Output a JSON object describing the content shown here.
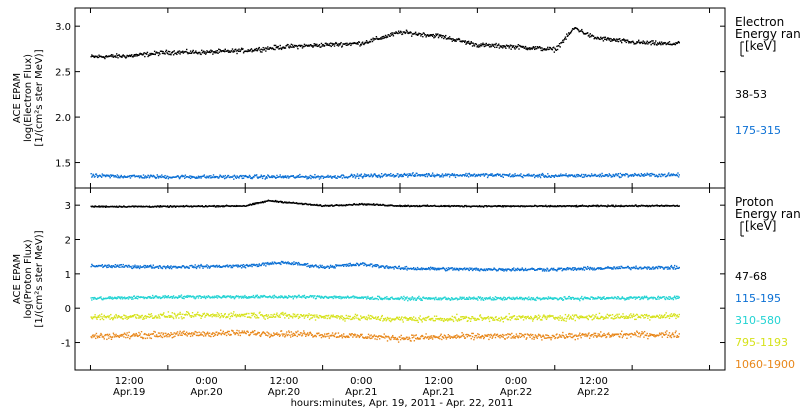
{
  "chart_data": [
    {
      "type": "scatter",
      "panel": "electron",
      "ylabel_lines": [
        "ACE EPAM",
        "log(Electron Flux)",
        "[1/(cm²s ster MeV)]"
      ],
      "ylim": [
        1.22,
        3.2
      ],
      "yticks": [
        1.5,
        2.0,
        2.5,
        3.0
      ],
      "ytick_labels": [
        "1.5",
        "2.0",
        "2.5",
        "3.0"
      ],
      "legend_title": [
        "Electron",
        "Energy ran",
        "[keV]"
      ],
      "series": [
        {
          "name": "38-53",
          "color": "#000000",
          "x": [
            0.0,
            0.25,
            0.5,
            0.75,
            1.0,
            1.25,
            1.5,
            1.75,
            2.0,
            2.25,
            2.5,
            2.75,
            3.0,
            3.125,
            3.25,
            3.5,
            3.75,
            3.8
          ],
          "y": [
            2.67,
            2.68,
            2.72,
            2.72,
            2.74,
            2.78,
            2.8,
            2.82,
            2.94,
            2.9,
            2.8,
            2.78,
            2.75,
            2.99,
            2.88,
            2.83,
            2.81,
            2.83
          ]
        },
        {
          "name": "175-315",
          "color": "#0a6fd4",
          "x": [
            0.0,
            0.5,
            1.0,
            1.5,
            2.0,
            2.5,
            3.0,
            3.5,
            3.8
          ],
          "y": [
            1.36,
            1.35,
            1.35,
            1.35,
            1.37,
            1.37,
            1.36,
            1.37,
            1.37
          ]
        }
      ]
    },
    {
      "type": "scatter",
      "panel": "proton",
      "ylabel_lines": [
        "ACE EPAM",
        "log(Proton Flux)",
        "[1/(cm²s ster MeV)]"
      ],
      "ylim": [
        -1.8,
        3.5
      ],
      "yticks": [
        -1,
        0,
        1,
        2,
        3
      ],
      "ytick_labels": [
        "-1",
        "0",
        "1",
        "2",
        "3"
      ],
      "legend_title": [
        "Proton",
        "Energy ran",
        "[keV]"
      ],
      "series": [
        {
          "name": "47-68",
          "color": "#000000",
          "x": [
            0.0,
            0.5,
            1.0,
            1.15,
            1.5,
            1.75,
            2.0,
            2.5,
            3.0,
            3.5,
            3.8
          ],
          "y": [
            2.98,
            2.98,
            3.0,
            3.15,
            3.0,
            3.05,
            3.0,
            2.99,
            2.99,
            3.0,
            3.0
          ],
          "ylabel": ""
        },
        {
          "name": "115-195",
          "color": "#0a6fd4",
          "x": [
            0.0,
            0.5,
            1.0,
            1.25,
            1.5,
            1.75,
            2.0,
            2.5,
            3.0,
            3.5,
            3.8
          ],
          "y": [
            1.25,
            1.22,
            1.25,
            1.35,
            1.22,
            1.3,
            1.18,
            1.15,
            1.15,
            1.2,
            1.2
          ]
        },
        {
          "name": "310-580",
          "color": "#22d3d3",
          "x": [
            0.0,
            0.5,
            1.0,
            1.5,
            2.0,
            2.5,
            3.0,
            3.5,
            3.8
          ],
          "y": [
            0.3,
            0.35,
            0.35,
            0.35,
            0.3,
            0.3,
            0.3,
            0.32,
            0.32
          ]
        },
        {
          "name": "795-1193",
          "color": "#d6e21a",
          "x": [
            0.0,
            0.5,
            1.0,
            1.5,
            2.0,
            2.5,
            3.0,
            3.5,
            3.8
          ],
          "y": [
            -0.25,
            -0.2,
            -0.18,
            -0.22,
            -0.3,
            -0.28,
            -0.25,
            -0.22,
            -0.2
          ]
        },
        {
          "name": "1060-1900",
          "color": "#e8871a",
          "x": [
            0.0,
            0.5,
            1.0,
            1.5,
            2.0,
            2.5,
            3.0,
            3.5,
            3.8
          ],
          "y": [
            -0.8,
            -0.75,
            -0.7,
            -0.75,
            -0.85,
            -0.8,
            -0.8,
            -0.75,
            -0.75
          ]
        }
      ]
    }
  ],
  "x_axis": {
    "xlim": [
      -0.1,
      4.1
    ],
    "ticks": [
      0.0,
      0.5,
      1.0,
      1.5,
      2.0,
      2.5,
      3.0,
      3.5,
      4.0
    ],
    "tick_time_labels": [
      "12:00",
      "0:00",
      "12:00",
      "0:00",
      "12:00",
      "0:00",
      "12:00"
    ],
    "tick_time_positions": [
      0.25,
      0.75,
      1.25,
      1.75,
      2.25,
      2.75,
      3.25
    ],
    "tick_date_labels": [
      "Apr.19",
      "Apr.20",
      "Apr.20",
      "Apr.21",
      "Apr.21",
      "Apr.22",
      "Apr.22"
    ],
    "xlabel": "hours:minutes, Apr. 19, 2011 - Apr. 22, 2011"
  }
}
